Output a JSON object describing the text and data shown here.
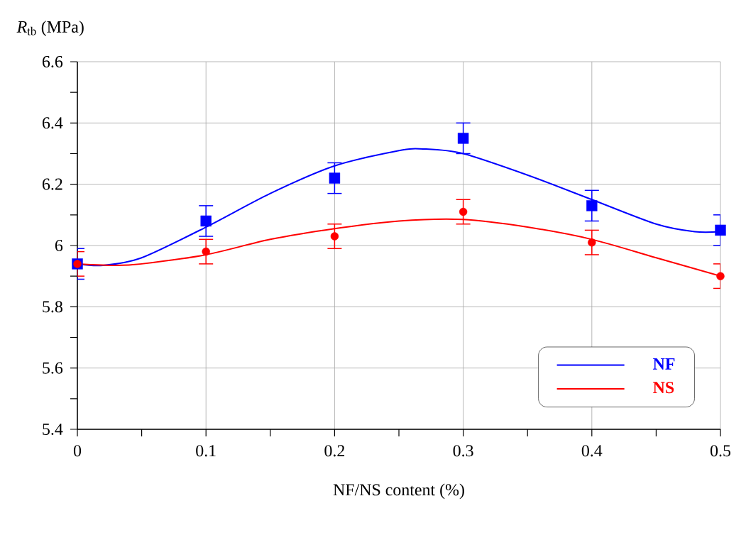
{
  "chart_data": {
    "type": "scatter",
    "xlabel": "NF/NS content (%)",
    "ylabel": "*R*$_{tb}$ (MPa)",
    "x": [
      0,
      0.1,
      0.2,
      0.3,
      0.4,
      0.5
    ],
    "series": [
      {
        "color": "#0000ff",
        "marker": "square",
        "values": [
          5.94,
          6.08,
          6.22,
          6.35,
          6.13,
          6.05
        ],
        "errors": [
          0.05,
          0.05,
          0.05,
          0.05,
          0.05,
          0.05
        ]
      },
      {
        "color": "#ff0000",
        "marker": "circle",
        "values": [
          5.94,
          5.98,
          6.03,
          6.11,
          6.01,
          5.9
        ],
        "errors": [
          0.04,
          0.04,
          0.04,
          0.04,
          0.04,
          0.04
        ]
      },
      {
        "type": "line",
        "name": "NF",
        "color": "#0000ff",
        "x": [
          0,
          0.02,
          0.05,
          0.1,
          0.15,
          0.2,
          0.25,
          0.27,
          0.3,
          0.35,
          0.4,
          0.45,
          0.48,
          0.5
        ],
        "values": [
          5.94,
          5.935,
          5.96,
          6.06,
          6.17,
          6.26,
          6.31,
          6.315,
          6.3,
          6.23,
          6.15,
          6.07,
          6.045,
          6.045
        ]
      },
      {
        "type": "line",
        "name": "NS",
        "color": "#ff0000",
        "x": [
          0,
          0.03,
          0.05,
          0.1,
          0.15,
          0.2,
          0.25,
          0.3,
          0.35,
          0.4,
          0.45,
          0.5
        ],
        "values": [
          5.94,
          5.935,
          5.94,
          5.97,
          6.02,
          6.055,
          6.08,
          6.085,
          6.06,
          6.02,
          5.96,
          5.9
        ]
      }
    ],
    "xlim": [
      0,
      0.5
    ],
    "xticks": [
      0,
      0.1,
      0.2,
      0.3,
      0.4,
      0.5
    ],
    "ylim": [
      5.4,
      6.6
    ],
    "yticks": [
      5.4,
      5.6,
      5.8,
      6,
      6.2,
      6.4,
      6.6
    ],
    "grid": true,
    "legend": "bottom right"
  }
}
